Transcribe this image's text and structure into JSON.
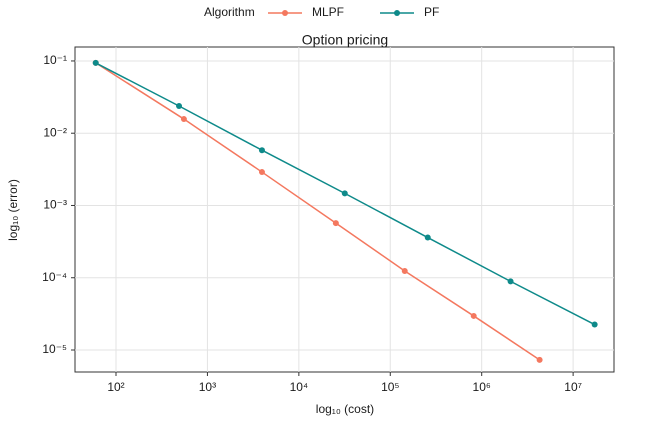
{
  "chart_data": {
    "type": "line",
    "title": "Option pricing",
    "xlabel": "log₁₀ (cost)",
    "ylabel": "log₁₀ (error)",
    "legend_title": "Algorithm",
    "legend": "top",
    "grid": true,
    "xscale": "log",
    "yscale": "log",
    "xlim": [
      35.6,
      28000000
    ],
    "ylim": [
      4.96e-06,
      0.156
    ],
    "xticks": [
      {
        "value": 100,
        "label": "10²"
      },
      {
        "value": 1000,
        "label": "10³"
      },
      {
        "value": 10000,
        "label": "10⁴"
      },
      {
        "value": 100000,
        "label": "10⁵"
      },
      {
        "value": 1000000,
        "label": "10⁶"
      },
      {
        "value": 10000000,
        "label": "10⁷"
      }
    ],
    "yticks": [
      {
        "value": 0.1,
        "label": "10⁻¹"
      },
      {
        "value": 0.01,
        "label": "10⁻²"
      },
      {
        "value": 0.001,
        "label": "10⁻³"
      },
      {
        "value": 0.0001,
        "label": "10⁻⁴"
      },
      {
        "value": 1e-05,
        "label": "10⁻⁵"
      }
    ],
    "series": [
      {
        "name": "MLPF",
        "color": "#f4785f",
        "x": [
          60,
          553,
          3950,
          25400,
          144000,
          818000,
          4300000
        ],
        "values": [
          0.094,
          0.0157,
          0.0029,
          0.00057,
          0.000124,
          2.96e-05,
          7.3e-06
        ]
      },
      {
        "name": "PF",
        "color": "#0e8a8a",
        "x": [
          60,
          489,
          3950,
          31800,
          257000,
          2070000,
          17200000
        ],
        "values": [
          0.094,
          0.0238,
          0.00582,
          0.00147,
          0.00036,
          8.9e-05,
          2.25e-05
        ]
      }
    ]
  }
}
